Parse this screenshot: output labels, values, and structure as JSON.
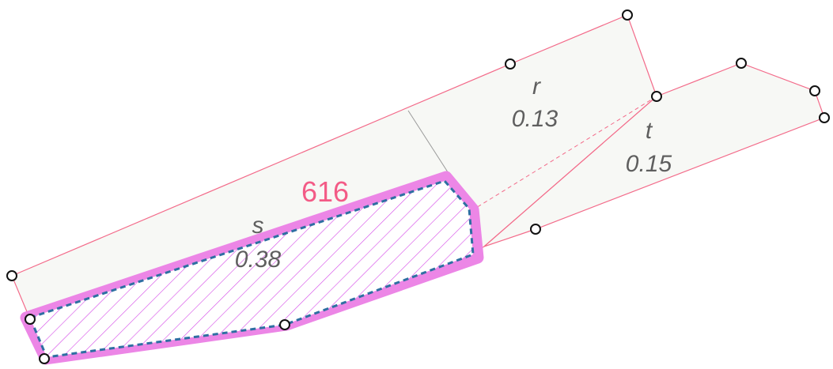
{
  "diagram": {
    "main_label": "616",
    "zones": [
      {
        "id": "r",
        "name": "r",
        "value": "0.13"
      },
      {
        "id": "t",
        "name": "t",
        "value": "0.15"
      },
      {
        "id": "s",
        "name": "s",
        "value": "0.38"
      }
    ]
  },
  "colors": {
    "outline": "#f36b8a",
    "highlight": "#ec86e6",
    "hatch": "#d548e8",
    "dashed_border": "#2e6fa2",
    "label_accent": "#f35b86",
    "zone_text": "#5f5f5f"
  }
}
